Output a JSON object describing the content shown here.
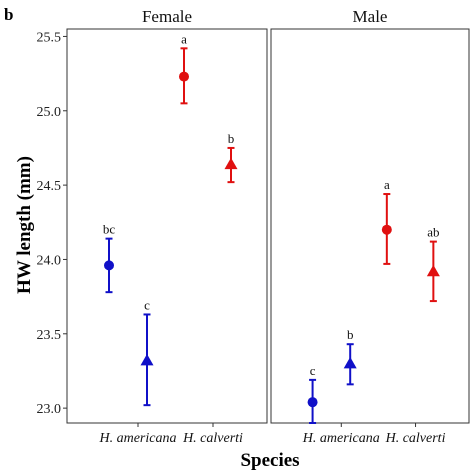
{
  "chart_data": {
    "type": "scatter",
    "panel_tag": "b",
    "ylabel": "HW length (mm)",
    "xlabel": "Species",
    "ylim": [
      22.9,
      25.55
    ],
    "yticks": [
      23.0,
      23.5,
      24.0,
      24.5,
      25.0,
      25.5
    ],
    "ytick_labels": [
      "23.0",
      "23.5",
      "24.0",
      "24.5",
      "25.0",
      "25.5"
    ],
    "categories": [
      "H. americana",
      "H. calverti"
    ],
    "colors": {
      "H. americana": "#1010c8",
      "H. calverti": "#e01010"
    },
    "panels": [
      {
        "title": "Female",
        "points": [
          {
            "category": "H. americana",
            "marker": "circle",
            "mean": 23.96,
            "lower": 23.78,
            "upper": 24.14,
            "label": "bc"
          },
          {
            "category": "H. americana",
            "marker": "triangle",
            "mean": 23.32,
            "lower": 23.02,
            "upper": 23.63,
            "label": "c"
          },
          {
            "category": "H. calverti",
            "marker": "circle",
            "mean": 25.23,
            "lower": 25.05,
            "upper": 25.42,
            "label": "a"
          },
          {
            "category": "H. calverti",
            "marker": "triangle",
            "mean": 24.64,
            "lower": 24.52,
            "upper": 24.75,
            "label": "b"
          }
        ]
      },
      {
        "title": "Male",
        "points": [
          {
            "category": "H. americana",
            "marker": "circle",
            "mean": 23.04,
            "lower": 22.9,
            "upper": 23.19,
            "label": "c"
          },
          {
            "category": "H. americana",
            "marker": "triangle",
            "mean": 23.3,
            "lower": 23.16,
            "upper": 23.43,
            "label": "b"
          },
          {
            "category": "H. calverti",
            "marker": "circle",
            "mean": 24.2,
            "lower": 23.97,
            "upper": 24.44,
            "label": "a"
          },
          {
            "category": "H. calverti",
            "marker": "triangle",
            "mean": 23.92,
            "lower": 23.72,
            "upper": 24.12,
            "label": "ab"
          }
        ]
      }
    ],
    "grid": false,
    "legend": "none"
  }
}
